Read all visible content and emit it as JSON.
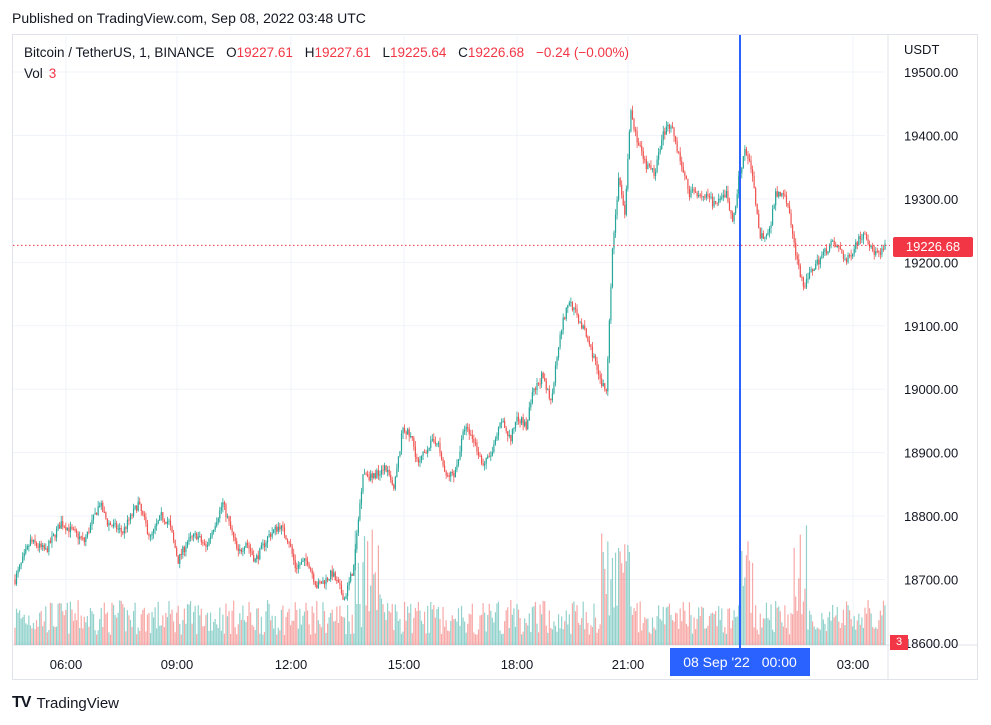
{
  "published": "Published on TradingView.com, Sep 08, 2022 03:48 UTC",
  "legend": {
    "symbol": "Bitcoin / TetherUS, 1, BINANCE",
    "o_label": "O",
    "o_value": "19227.61",
    "h_label": "H",
    "h_value": "19227.61",
    "l_label": "L",
    "l_value": "19225.64",
    "c_label": "C",
    "c_value": "19226.68",
    "change": "−0.24 (−0.00%)",
    "vol_label": "Vol",
    "vol_value": "3"
  },
  "currency": "USDT",
  "last_price_label": "19226.68",
  "crosshair_label": {
    "date": "08 Sep '22",
    "time": "00:00"
  },
  "brand": {
    "logo": "TV",
    "name": "TradingView"
  },
  "colors": {
    "up": "#26a69a",
    "down": "#ef5350",
    "crosshair": "#2962ff",
    "last_price": "#f23645"
  },
  "chart_data": {
    "type": "candlestick",
    "y_ticks": [
      "19500.00",
      "19400.00",
      "19300.00",
      "19200.00",
      "19100.00",
      "19000.00",
      "18900.00",
      "18800.00",
      "18700.00",
      "18600.00"
    ],
    "x_ticks": [
      "06:00",
      "09:00",
      "12:00",
      "15:00",
      "18:00",
      "21:00",
      "03:00"
    ],
    "ylim": [
      18600,
      19500
    ],
    "last_price": 19226.68,
    "close_path": [
      [
        0,
        18700
      ],
      [
        10,
        18760
      ],
      [
        20,
        18745
      ],
      [
        30,
        18790
      ],
      [
        40,
        18770
      ],
      [
        45,
        18760
      ],
      [
        55,
        18820
      ],
      [
        60,
        18790
      ],
      [
        70,
        18775
      ],
      [
        80,
        18820
      ],
      [
        88,
        18765
      ],
      [
        95,
        18800
      ],
      [
        100,
        18790
      ],
      [
        106,
        18730
      ],
      [
        112,
        18760
      ],
      [
        118,
        18770
      ],
      [
        124,
        18750
      ],
      [
        130,
        18790
      ],
      [
        135,
        18820
      ],
      [
        140,
        18780
      ],
      [
        145,
        18740
      ],
      [
        150,
        18760
      ],
      [
        156,
        18730
      ],
      [
        165,
        18770
      ],
      [
        172,
        18785
      ],
      [
        178,
        18760
      ],
      [
        182,
        18720
      ],
      [
        190,
        18730
      ],
      [
        196,
        18690
      ],
      [
        202,
        18700
      ],
      [
        206,
        18710
      ],
      [
        214,
        18670
      ],
      [
        220,
        18720
      ],
      [
        226,
        18870
      ],
      [
        232,
        18860
      ],
      [
        240,
        18880
      ],
      [
        246,
        18840
      ],
      [
        252,
        18940
      ],
      [
        258,
        18920
      ],
      [
        262,
        18880
      ],
      [
        268,
        18910
      ],
      [
        274,
        18920
      ],
      [
        280,
        18860
      ],
      [
        286,
        18870
      ],
      [
        292,
        18940
      ],
      [
        298,
        18920
      ],
      [
        304,
        18880
      ],
      [
        310,
        18900
      ],
      [
        316,
        18950
      ],
      [
        322,
        18920
      ],
      [
        326,
        18960
      ],
      [
        332,
        18940
      ],
      [
        336,
        18990
      ],
      [
        342,
        19020
      ],
      [
        348,
        18980
      ],
      [
        354,
        19090
      ],
      [
        360,
        19140
      ],
      [
        364,
        19120
      ],
      [
        370,
        19090
      ],
      [
        376,
        19050
      ],
      [
        380,
        19010
      ],
      [
        384,
        19000
      ],
      [
        388,
        19220
      ],
      [
        392,
        19330
      ],
      [
        396,
        19280
      ],
      [
        400,
        19440
      ],
      [
        404,
        19390
      ],
      [
        410,
        19350
      ],
      [
        416,
        19340
      ],
      [
        420,
        19400
      ],
      [
        426,
        19420
      ],
      [
        432,
        19360
      ],
      [
        438,
        19310
      ],
      [
        444,
        19310
      ],
      [
        450,
        19300
      ],
      [
        456,
        19290
      ],
      [
        462,
        19310
      ],
      [
        466,
        19260
      ],
      [
        470,
        19330
      ],
      [
        474,
        19380
      ],
      [
        478,
        19350
      ],
      [
        484,
        19240
      ],
      [
        490,
        19250
      ],
      [
        494,
        19310
      ],
      [
        500,
        19310
      ],
      [
        504,
        19260
      ],
      [
        508,
        19200
      ],
      [
        512,
        19160
      ],
      [
        518,
        19190
      ],
      [
        524,
        19210
      ],
      [
        530,
        19230
      ],
      [
        536,
        19220
      ],
      [
        540,
        19200
      ],
      [
        546,
        19230
      ],
      [
        552,
        19250
      ],
      [
        556,
        19220
      ],
      [
        562,
        19210
      ],
      [
        565,
        19226.68
      ]
    ]
  }
}
